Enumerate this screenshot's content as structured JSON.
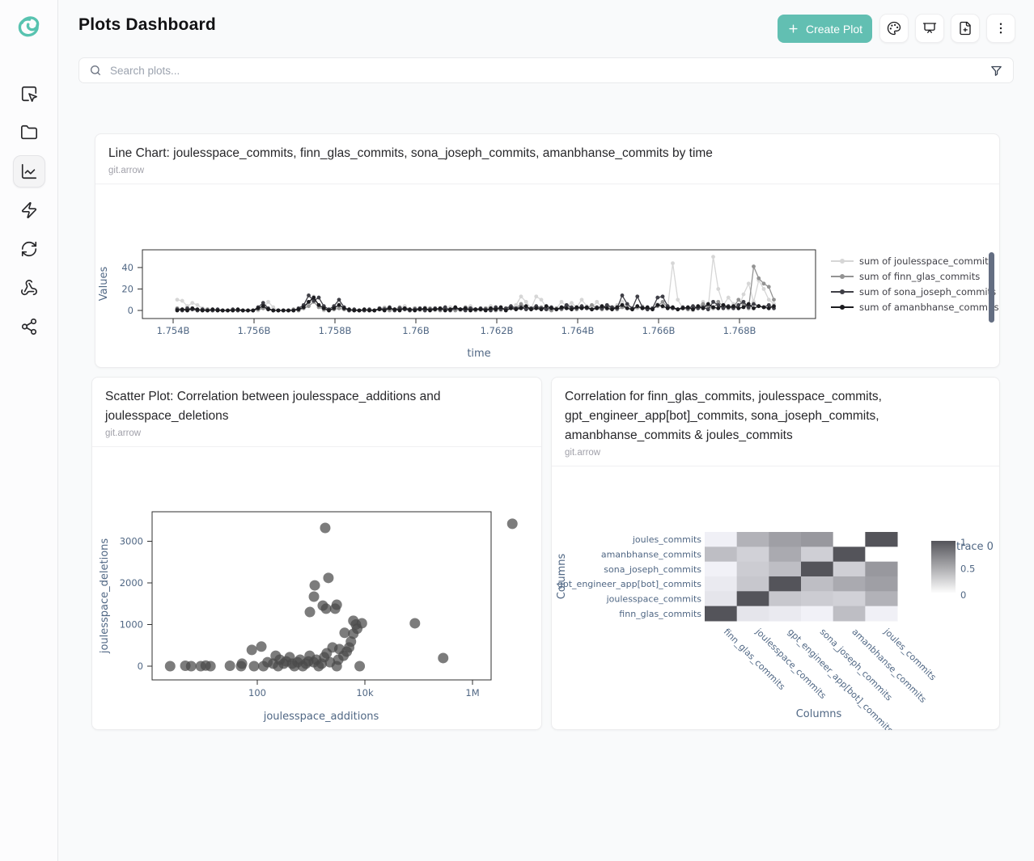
{
  "app": {
    "title": "Plots Dashboard"
  },
  "header": {
    "create_plot_label": "Create Plot",
    "icons": [
      "palette-icon",
      "presentation-icon",
      "file-plus-icon",
      "kebab-menu-icon"
    ]
  },
  "search": {
    "placeholder": "Search plots..."
  },
  "sidebar": {
    "items": [
      "select-area",
      "folder",
      "chart-line",
      "zap",
      "refresh",
      "webhook",
      "share"
    ],
    "active_item": "chart-line"
  },
  "colors": {
    "accent_teal": "#62bfb2",
    "logo_teal": "#58c3b0",
    "axis_text": "#506784",
    "scatter_marker": "#4a4a4a",
    "heatmap_high": "#54545a",
    "heatmap_low": "#ffffff"
  },
  "cards": {
    "line": {
      "title": "Line Chart: joulesspace_commits, finn_glas_commits, sona_joseph_commits, amanbhanse_commits by time",
      "source": "git.arrow"
    },
    "scatter": {
      "title": "Scatter Plot: Correlation between joulesspace_additions and joulesspace_deletions",
      "source": "git.arrow"
    },
    "heatmap": {
      "title": "Correlation for finn_glas_commits, joulesspace_commits, gpt_engineer_app[bot]_commits, sona_joseph_commits, amanbhanse_commits & joules_commits",
      "source": "git.arrow"
    }
  },
  "chart_data": [
    {
      "type": "line",
      "title": "Line Chart: joulesspace_commits, finn_glas_commits, sona_joseph_commits, amanbhanse_commits by time",
      "xlabel": "time",
      "ylabel": "Values",
      "x_start": 1754100000,
      "x_step": 125000,
      "x_ticks": [
        {
          "v": 1754000000,
          "l": "1.754B"
        },
        {
          "v": 1756000000,
          "l": "1.756B"
        },
        {
          "v": 1758000000,
          "l": "1.758B"
        },
        {
          "v": 1760000000,
          "l": "1.76B"
        },
        {
          "v": 1762000000,
          "l": "1.762B"
        },
        {
          "v": 1764000000,
          "l": "1.764B"
        },
        {
          "v": 1766000000,
          "l": "1.766B"
        },
        {
          "v": 1768000000,
          "l": "1.768B"
        }
      ],
      "y_ticks": [
        0,
        20,
        40
      ],
      "ylim": [
        -4,
        60
      ],
      "legend_position": "right",
      "series": [
        {
          "name": "sum of joulesspace_commits",
          "color": "#d6d6d6",
          "values": [
            10,
            9,
            4,
            7,
            5,
            2,
            1,
            1,
            0,
            0,
            0,
            0,
            0,
            0,
            0,
            0,
            0,
            2,
            8,
            3,
            0,
            0,
            0,
            0,
            0,
            2,
            5,
            13,
            4,
            0,
            0,
            2,
            6,
            2,
            0,
            0,
            0,
            0,
            0,
            0,
            2,
            3,
            1,
            0,
            2,
            4,
            1,
            2,
            0,
            3,
            1,
            0,
            2,
            1,
            3,
            1,
            0,
            2,
            4,
            1,
            0,
            2,
            4,
            1,
            0,
            1,
            2,
            5,
            13,
            8,
            2,
            13,
            10,
            3,
            1,
            2,
            8,
            4,
            7,
            3,
            10,
            4,
            2,
            8,
            3,
            1,
            3,
            5,
            8,
            3,
            1,
            2,
            4,
            1,
            2,
            6,
            3,
            2,
            44,
            10,
            2,
            1,
            0,
            3,
            8,
            2,
            50,
            20,
            5,
            12,
            6,
            2,
            15,
            25,
            8,
            28,
            20,
            10,
            6
          ]
        },
        {
          "name": "sum of finn_glas_commits",
          "color": "#939393",
          "values": [
            2,
            1,
            0,
            1,
            0,
            0,
            1,
            0,
            0,
            0,
            0,
            0,
            0,
            0,
            0,
            0,
            1,
            2,
            1,
            0,
            0,
            0,
            0,
            1,
            0,
            2,
            4,
            8,
            3,
            1,
            0,
            1,
            2,
            1,
            0,
            0,
            0,
            0,
            0,
            0,
            1,
            2,
            0,
            1,
            3,
            1,
            0,
            2,
            1,
            0,
            2,
            1,
            0,
            2,
            1,
            0,
            1,
            3,
            1,
            0,
            1,
            2,
            1,
            0,
            2,
            1,
            3,
            2,
            6,
            3,
            1,
            2,
            3,
            1,
            0,
            2,
            1,
            3,
            2,
            1,
            3,
            2,
            5,
            2,
            1,
            4,
            2,
            1,
            3,
            2,
            1,
            3,
            2,
            1,
            2,
            4,
            8,
            3,
            2,
            1,
            2,
            1,
            3,
            2,
            6,
            3,
            2,
            8,
            4,
            2,
            3,
            10,
            5,
            2,
            41,
            30,
            25,
            22,
            10
          ]
        },
        {
          "name": "sum of sona_joseph_commits",
          "color": "#3f3f46",
          "values": [
            1,
            0,
            2,
            1,
            0,
            1,
            0,
            0,
            1,
            0,
            0,
            1,
            0,
            0,
            0,
            0,
            3,
            7,
            2,
            0,
            0,
            0,
            0,
            0,
            2,
            5,
            14,
            9,
            12,
            4,
            1,
            4,
            10,
            3,
            0,
            1,
            0,
            0,
            1,
            0,
            2,
            1,
            3,
            0,
            2,
            1,
            0,
            1,
            2,
            0,
            1,
            2,
            1,
            3,
            0,
            2,
            1,
            0,
            2,
            1,
            2,
            1,
            0,
            3,
            1,
            2,
            4,
            2,
            3,
            1,
            2,
            4,
            2,
            1,
            3,
            1,
            2,
            5,
            3,
            2,
            4,
            2,
            1,
            3,
            2,
            5,
            3,
            2,
            14,
            6,
            2,
            13,
            3,
            1,
            2,
            12,
            13,
            4,
            2,
            1,
            3,
            2,
            4,
            2,
            3,
            1,
            8,
            5,
            2,
            4,
            2,
            5,
            8,
            3,
            6,
            4,
            3,
            5,
            2
          ]
        },
        {
          "name": "sum of amanbhanse_commits",
          "color": "#1b1b1f",
          "values": [
            0,
            1,
            0,
            2,
            1,
            0,
            0,
            1,
            0,
            0,
            0,
            0,
            1,
            0,
            0,
            0,
            2,
            4,
            1,
            0,
            0,
            0,
            0,
            0,
            1,
            3,
            8,
            12,
            5,
            2,
            0,
            2,
            5,
            2,
            1,
            0,
            0,
            1,
            0,
            0,
            1,
            0,
            2,
            1,
            0,
            2,
            1,
            0,
            1,
            2,
            0,
            1,
            2,
            0,
            1,
            3,
            1,
            2,
            0,
            1,
            1,
            0,
            2,
            1,
            3,
            0,
            2,
            1,
            2,
            4,
            1,
            2,
            1,
            4,
            2,
            1,
            3,
            2,
            1,
            3,
            2,
            3,
            1,
            2,
            4,
            2,
            1,
            3,
            5,
            2,
            1,
            4,
            2,
            3,
            1,
            5,
            4,
            2,
            3,
            1,
            2,
            3,
            1,
            4,
            2,
            6,
            3,
            2,
            5,
            3,
            4,
            2,
            3,
            6,
            2,
            4,
            3,
            2,
            4
          ]
        }
      ]
    },
    {
      "type": "scatter",
      "title": "Scatter Plot: Correlation between joulesspace_additions and joulesspace_deletions",
      "xlabel": "joulesspace_additions",
      "ylabel": "joulesspace_deletions",
      "x_scale": "log",
      "x_ticks": [
        {
          "v": 100,
          "l": "100"
        },
        {
          "v": 10000,
          "l": "10k"
        },
        {
          "v": 1000000,
          "l": "1M"
        }
      ],
      "y_ticks": [
        0,
        1000,
        2000,
        3000
      ],
      "marker_color": "#4a4a4a",
      "marker_opacity": 0.72,
      "points": [
        [
          2.4,
          0
        ],
        [
          4.6,
          10
        ],
        [
          5.9,
          0
        ],
        [
          8.9,
          0
        ],
        [
          11,
          15
        ],
        [
          13.5,
          0
        ],
        [
          31,
          10
        ],
        [
          50,
          0
        ],
        [
          52,
          60
        ],
        [
          79,
          390
        ],
        [
          87,
          0
        ],
        [
          119,
          470
        ],
        [
          130,
          0
        ],
        [
          155,
          95
        ],
        [
          197,
          60
        ],
        [
          220,
          250
        ],
        [
          244,
          0
        ],
        [
          262,
          155
        ],
        [
          310,
          60
        ],
        [
          345,
          115
        ],
        [
          400,
          215
        ],
        [
          444,
          60
        ],
        [
          490,
          0
        ],
        [
          560,
          95
        ],
        [
          625,
          155
        ],
        [
          700,
          0
        ],
        [
          800,
          60
        ],
        [
          890,
          115
        ],
        [
          940,
          250
        ],
        [
          950,
          1300
        ],
        [
          1120,
          95
        ],
        [
          1130,
          1670
        ],
        [
          1170,
          1940
        ],
        [
          1250,
          155
        ],
        [
          1380,
          0
        ],
        [
          1570,
          60
        ],
        [
          1650,
          1455
        ],
        [
          1750,
          215
        ],
        [
          1830,
          3320
        ],
        [
          1900,
          1380
        ],
        [
          1950,
          310
        ],
        [
          2100,
          2120
        ],
        [
          2250,
          95
        ],
        [
          2500,
          450
        ],
        [
          2800,
          1380
        ],
        [
          3000,
          1475
        ],
        [
          3000,
          0
        ],
        [
          3200,
          155
        ],
        [
          3350,
          410
        ],
        [
          4000,
          250
        ],
        [
          4200,
          800
        ],
        [
          4600,
          350
        ],
        [
          5100,
          450
        ],
        [
          5500,
          590
        ],
        [
          6100,
          780
        ],
        [
          6100,
          1090
        ],
        [
          6800,
          1000
        ],
        [
          7200,
          900
        ],
        [
          8000,
          0
        ],
        [
          8800,
          1030
        ],
        [
          85000,
          1030
        ],
        [
          285000,
          195
        ],
        [
          5500000,
          3420
        ]
      ]
    },
    {
      "type": "heatmap",
      "title": "Correlation for finn_glas_commits, joulesspace_commits, gpt_engineer_app[bot]_commits, sona_joseph_commits, amanbhanse_commits & joules_commits",
      "xlabel": "Columns",
      "ylabel": "Columns",
      "x_categories": [
        "finn_glas_commits",
        "joulesspace_commits",
        "gpt_engineer_app[bot]_commits",
        "sona_joseph_commits",
        "amanbhanse_commits",
        "joules_commits"
      ],
      "y_categories_top_to_bottom": [
        "joules_commits",
        "amanbhanse_commits",
        "sona_joseph_commits",
        "gpt_engineer_app[bot]_commits",
        "joulesspace_commits",
        "finn_glas_commits"
      ],
      "values_rows_top_to_bottom": [
        [
          0.09,
          0.45,
          0.56,
          0.6,
          -0.02,
          1.0
        ],
        [
          0.38,
          0.27,
          0.5,
          0.28,
          1.0,
          -0.02
        ],
        [
          0.08,
          0.3,
          0.38,
          1.0,
          0.28,
          0.6
        ],
        [
          0.12,
          0.33,
          1.0,
          0.38,
          0.5,
          0.56
        ],
        [
          0.15,
          1.0,
          0.33,
          0.3,
          0.27,
          0.45
        ],
        [
          1.0,
          0.15,
          0.12,
          0.08,
          0.38,
          0.09
        ]
      ],
      "colorbar": {
        "title": "trace 0",
        "tick_labels": [
          "1",
          "0.5",
          "0"
        ],
        "tick_values": [
          1,
          0.5,
          0
        ],
        "max": 1,
        "min": 0
      }
    }
  ]
}
